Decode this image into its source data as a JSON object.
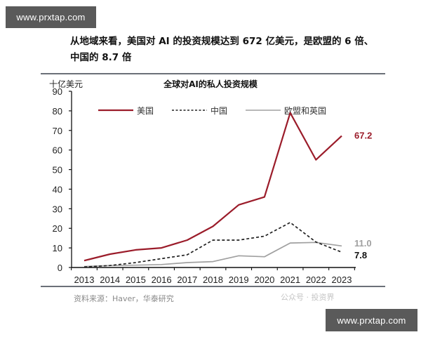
{
  "watermarks": {
    "top": "www.prxtap.com",
    "bottom": "www.prxtap.com"
  },
  "headline": "从地域来看，美国对 AI 的投资规模达到 672 亿美元，是欧盟的 6 倍、中国的 8.7 倍",
  "source_note": "资料来源：Haver，华泰研究",
  "faint_watermark": "公众号 · 投资界",
  "colors": {
    "us": "#9b1c2a",
    "china": "#222222",
    "eu_uk": "#a0a0a0",
    "axis": "#111111",
    "rule": "#6b7078"
  },
  "chart_data": {
    "type": "line",
    "title": "全球对AI的私人投资规模",
    "ylabel": "十亿美元",
    "xlabel": "",
    "x": [
      2013,
      2014,
      2015,
      2016,
      2017,
      2018,
      2019,
      2020,
      2021,
      2022,
      2023
    ],
    "ylim": [
      0,
      90
    ],
    "yticks": [
      0,
      10,
      20,
      30,
      40,
      50,
      60,
      70,
      80,
      90
    ],
    "grid": false,
    "legend_position": "top",
    "series": [
      {
        "name": "美国",
        "style": "solid",
        "color": "#9b1c2a",
        "values": [
          3.5,
          6.8,
          9.0,
          10.0,
          14.0,
          21.0,
          32.0,
          36.0,
          79.0,
          55.0,
          67.2
        ],
        "end_label": "67.2"
      },
      {
        "name": "中国",
        "style": "dashed",
        "color": "#222222",
        "values": [
          0.3,
          1.0,
          2.5,
          4.5,
          6.5,
          14.0,
          14.0,
          16.0,
          23.0,
          13.0,
          7.8
        ],
        "end_label": "7.8"
      },
      {
        "name": "欧盟和英国",
        "style": "solid",
        "color": "#a0a0a0",
        "values": [
          0.5,
          1.0,
          1.2,
          1.5,
          2.5,
          3.0,
          6.0,
          5.5,
          12.5,
          12.8,
          11.0
        ],
        "end_label": "11.0"
      }
    ]
  }
}
